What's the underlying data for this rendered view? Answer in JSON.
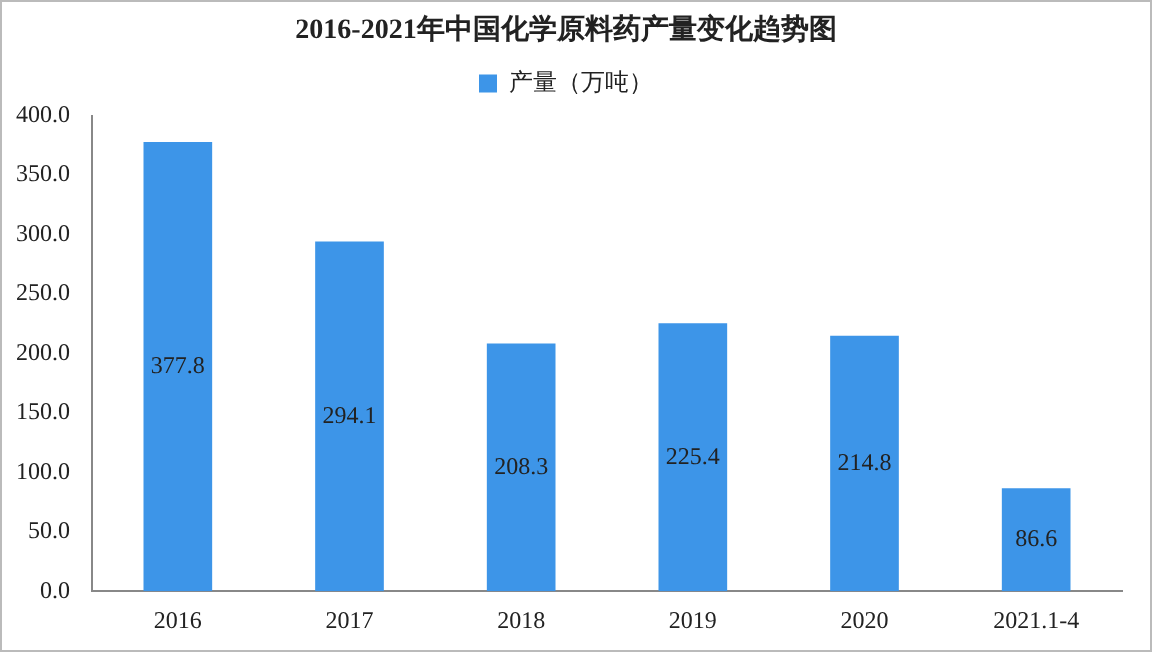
{
  "chart_data": {
    "type": "bar",
    "title": "2016-2021年中国化学原料药产量变化趋势图",
    "categories": [
      "2016",
      "2017",
      "2018",
      "2019",
      "2020",
      "2021.1-4"
    ],
    "series": [
      {
        "name": "产量（万吨）",
        "color": "#3d95e8",
        "values": [
          377.8,
          294.1,
          208.3,
          225.4,
          214.8,
          86.6
        ]
      }
    ],
    "ylim": [
      0,
      400
    ],
    "yticks": [
      {
        "value": 0,
        "label": "0.0"
      },
      {
        "value": 50,
        "label": "50.0"
      },
      {
        "value": 100,
        "label": "100.0"
      },
      {
        "value": 150,
        "label": "150.0"
      },
      {
        "value": 200,
        "label": "200.0"
      },
      {
        "value": 250,
        "label": "250.0"
      },
      {
        "value": 300,
        "label": "300.0"
      },
      {
        "value": 350,
        "label": "350.0"
      },
      {
        "value": 400,
        "label": "400.0"
      }
    ],
    "grid": false,
    "legend": "top",
    "data_labels": true
  }
}
